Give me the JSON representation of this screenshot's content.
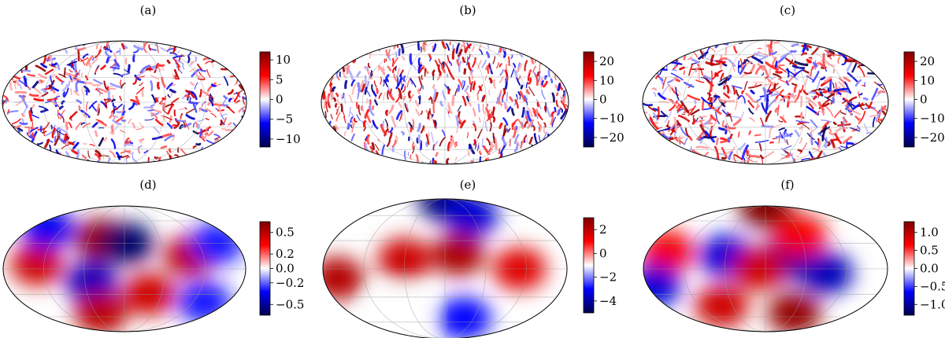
{
  "chart_data": [
    {
      "type": "heatmap",
      "projection": "mollweide",
      "panel": "(a)",
      "colorbar": {
        "range": [
          -12,
          12
        ],
        "ticks": [
          10,
          5,
          0,
          -5,
          -10
        ],
        "tick_labels": [
          "10",
          "5",
          "0",
          "−5",
          "−10"
        ],
        "colormap": "seismic"
      },
      "pattern": "small-scale"
    },
    {
      "type": "heatmap",
      "projection": "mollweide",
      "panel": "(b)",
      "colorbar": {
        "range": [
          -25,
          25
        ],
        "ticks": [
          20,
          10,
          0,
          -10,
          -20
        ],
        "tick_labels": [
          "20",
          "10",
          "0",
          "−10",
          "−20"
        ],
        "colormap": "seismic"
      },
      "pattern": "small-scale"
    },
    {
      "type": "heatmap",
      "projection": "mollweide",
      "panel": "(c)",
      "colorbar": {
        "range": [
          -25,
          25
        ],
        "ticks": [
          20,
          10,
          0,
          -10,
          -20
        ],
        "tick_labels": [
          "20",
          "10",
          "0",
          "−10",
          "−20"
        ],
        "colormap": "seismic"
      },
      "pattern": "small-scale"
    },
    {
      "type": "heatmap",
      "projection": "mollweide",
      "panel": "(d)",
      "colorbar": {
        "range": [
          -0.65,
          0.65
        ],
        "ticks": [
          0.5,
          0.2,
          0.0,
          -0.2,
          -0.5
        ],
        "tick_labels": [
          "0.5",
          "0.2",
          "0.0",
          "−0.2",
          "−0.5"
        ],
        "colormap": "seismic"
      },
      "pattern": "large-scale",
      "blobs": [
        {
          "lon": -40,
          "lat": 35,
          "value": 0.6
        },
        {
          "lon": 5,
          "lat": 30,
          "value": -0.6
        },
        {
          "lon": -130,
          "lat": 5,
          "value": 0.45
        },
        {
          "lon": 100,
          "lat": 15,
          "value": 0.5
        },
        {
          "lon": -50,
          "lat": -15,
          "value": -0.45
        },
        {
          "lon": 40,
          "lat": -30,
          "value": 0.45
        },
        {
          "lon": -50,
          "lat": -55,
          "value": 0.5
        },
        {
          "lon": -150,
          "lat": 50,
          "value": -0.35
        },
        {
          "lon": 150,
          "lat": 30,
          "value": -0.3
        },
        {
          "lon": 140,
          "lat": -40,
          "value": -0.3
        }
      ]
    },
    {
      "type": "heatmap",
      "projection": "mollweide",
      "panel": "(e)",
      "colorbar": {
        "range": [
          -5,
          3
        ],
        "ticks": [
          2,
          0,
          -2,
          -4
        ],
        "tick_labels": [
          "2",
          "0",
          "−2",
          "−4"
        ],
        "colormap": "seismic"
      },
      "pattern": "large-scale",
      "blobs": [
        {
          "lon": 0,
          "lat": 85,
          "value": -4.5
        },
        {
          "lon": 60,
          "lat": 60,
          "value": -3.5
        },
        {
          "lon": -160,
          "lat": -10,
          "value": 2.2
        },
        {
          "lon": -60,
          "lat": 10,
          "value": 1.8
        },
        {
          "lon": 20,
          "lat": 15,
          "value": 2.3
        },
        {
          "lon": 110,
          "lat": 0,
          "value": 1.5
        },
        {
          "lon": 40,
          "lat": -55,
          "value": -3.0
        },
        {
          "lon": -90,
          "lat": -50,
          "value": -1.0
        }
      ]
    },
    {
      "type": "heatmap",
      "projection": "mollweide",
      "panel": "(f)",
      "colorbar": {
        "range": [
          -1.3,
          1.3
        ],
        "ticks": [
          1.0,
          0.5,
          0.0,
          -0.5,
          -1.0
        ],
        "tick_labels": [
          "1.0",
          "0.5",
          "0.0",
          "−0.5",
          "−1.0"
        ],
        "colormap": "seismic"
      },
      "pattern": "large-scale",
      "blobs": [
        {
          "lon": 0,
          "lat": 85,
          "value": 1.3
        },
        {
          "lon": -60,
          "lat": 15,
          "value": -0.8
        },
        {
          "lon": 25,
          "lat": 10,
          "value": -1.0
        },
        {
          "lon": -10,
          "lat": 0,
          "value": 0.9
        },
        {
          "lon": 90,
          "lat": -5,
          "value": -0.9
        },
        {
          "lon": -150,
          "lat": 20,
          "value": 0.7
        },
        {
          "lon": 60,
          "lat": 40,
          "value": 0.7
        },
        {
          "lon": -80,
          "lat": -45,
          "value": 0.9
        },
        {
          "lon": 60,
          "lat": -55,
          "value": 1.2
        },
        {
          "lon": -170,
          "lat": -20,
          "value": -0.8
        }
      ]
    }
  ]
}
